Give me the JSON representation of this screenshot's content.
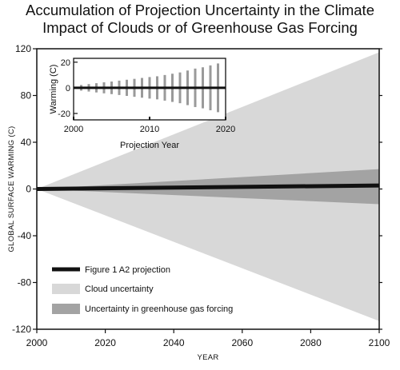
{
  "title": {
    "line1": "Accumulation of Projection Uncertainty in the Climate",
    "line2": "Impact of Clouds or of Greenhouse Gas Forcing"
  },
  "colors": {
    "cloud": "#d8d8d8",
    "ghg": "#a3a3a3",
    "projection": "#111111",
    "inset_bar": "#9a9a9a"
  },
  "chart_data": [
    {
      "type": "area",
      "xlabel": "YEAR",
      "ylabel": "GLOBAL SURFACE WARMING (C)",
      "xlim": [
        2000,
        2100
      ],
      "ylim": [
        -120,
        120
      ],
      "xticks": [
        2000,
        2020,
        2040,
        2060,
        2080,
        2100
      ],
      "yticks": [
        120,
        80,
        40,
        0,
        -40,
        -80,
        -120
      ],
      "grid": false,
      "legend_position": "bottom-left",
      "series": [
        {
          "name": "Figure 1 A2 projection",
          "style": "line",
          "x": [
            2000,
            2100
          ],
          "y": [
            0,
            3
          ]
        },
        {
          "name": "Cloud uncertainty",
          "style": "band",
          "x": [
            2000,
            2100
          ],
          "upper": [
            0,
            117
          ],
          "lower": [
            0,
            -113
          ]
        },
        {
          "name": "Uncertainty in greenhouse gas forcing",
          "style": "band",
          "x": [
            2000,
            2100
          ],
          "upper": [
            0,
            17
          ],
          "lower": [
            0,
            -13
          ]
        }
      ]
    },
    {
      "type": "bar",
      "inset": true,
      "xlabel": "Projection Year",
      "ylabel": "Warming (C)",
      "xlim": [
        2000,
        2020
      ],
      "ylim": [
        -25,
        23
      ],
      "xticks": [
        2000,
        2010,
        2020
      ],
      "yticks": [
        20,
        0,
        -20
      ],
      "x": [
        2001,
        2002,
        2003,
        2004,
        2005,
        2006,
        2007,
        2008,
        2009,
        2010,
        2011,
        2012,
        2013,
        2014,
        2015,
        2016,
        2017,
        2018,
        2019
      ],
      "upper": [
        2.2,
        2.9,
        3.6,
        4.3,
        4.9,
        5.6,
        6.3,
        7.0,
        7.7,
        8.4,
        9.0,
        10.0,
        11.0,
        12.0,
        13.5,
        15.0,
        16.0,
        17.5,
        19.0
      ],
      "lower": [
        -2.2,
        -2.9,
        -3.6,
        -4.3,
        -4.9,
        -5.6,
        -6.3,
        -7.0,
        -7.7,
        -8.4,
        -9.0,
        -10.0,
        -11.0,
        -12.0,
        -13.5,
        -15.0,
        -16.0,
        -17.5,
        -19.0
      ]
    }
  ]
}
